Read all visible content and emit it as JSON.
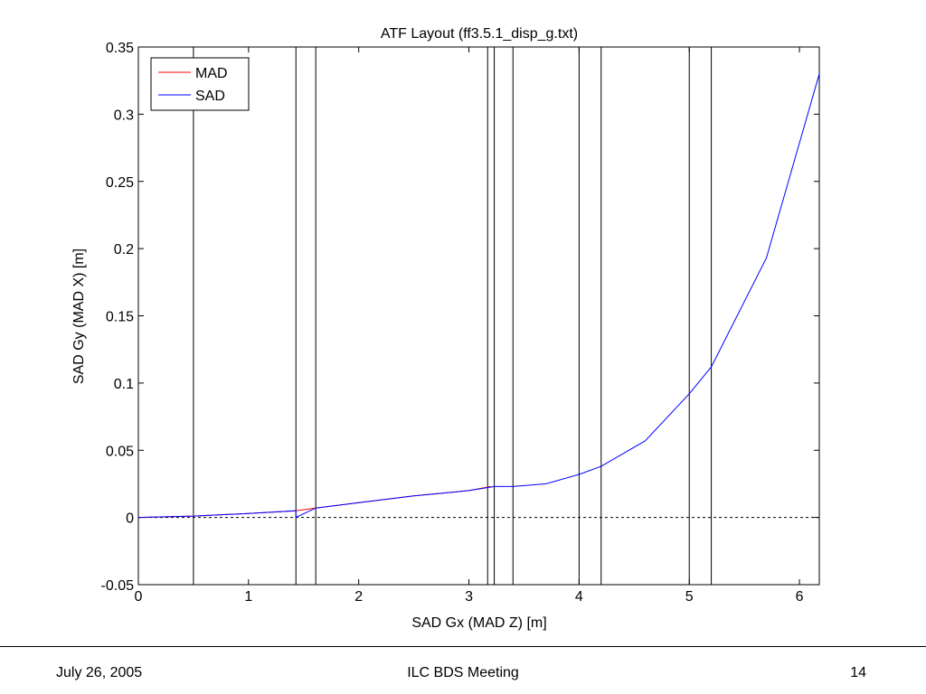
{
  "chart_data": {
    "type": "line",
    "title": "ATF Layout (ff3.5.1_disp_g.txt)",
    "xlabel": "SAD Gx (MAD Z) [m]",
    "ylabel": "SAD Gy (MAD X) [m]",
    "xlim": [
      0,
      6.18
    ],
    "ylim": [
      -0.05,
      0.35
    ],
    "xticks": [
      0,
      1,
      2,
      3,
      4,
      5,
      6
    ],
    "yticks": [
      -0.05,
      0,
      0.05,
      0.1,
      0.15,
      0.2,
      0.25,
      0.3,
      0.35
    ],
    "xtick_labels": [
      "0",
      "1",
      "2",
      "3",
      "4",
      "5",
      "6"
    ],
    "ytick_labels": [
      "-0.05",
      "0",
      "0.05",
      "0.1",
      "0.15",
      "0.2",
      "0.25",
      "0.3",
      "0.35"
    ],
    "grid": false,
    "legend_position": "top-left",
    "zero_line": {
      "y": 0,
      "style": "dashed",
      "color": "#000000"
    },
    "vertical_lines": [
      0.5,
      1.43,
      1.61,
      3.17,
      3.23,
      3.4,
      4.0,
      4.2,
      5.0,
      5.2
    ],
    "series": [
      {
        "name": "MAD",
        "color": "#ff0000",
        "x": [
          0,
          0.5,
          1.0,
          1.43,
          1.61,
          2.0,
          2.5,
          3.0,
          3.2
        ],
        "y": [
          0,
          0.001,
          0.003,
          0.005,
          0.007,
          0.011,
          0.016,
          0.02,
          0.023
        ]
      },
      {
        "name": "SAD",
        "color": "#0000ff",
        "x": [
          0,
          0.5,
          1.0,
          1.43,
          1.43,
          1.61,
          2.0,
          2.5,
          3.0,
          3.23,
          3.4,
          3.7,
          4.0,
          4.2,
          4.6,
          5.0,
          5.2,
          5.7,
          6.18
        ],
        "y": [
          0,
          0.001,
          0.003,
          0.005,
          0.0,
          0.007,
          0.011,
          0.016,
          0.02,
          0.023,
          0.023,
          0.025,
          0.032,
          0.038,
          0.057,
          0.092,
          0.112,
          0.193,
          0.33
        ]
      }
    ]
  },
  "footer": {
    "date": "July 26, 2005",
    "event": "ILC BDS Meeting",
    "page": "14"
  }
}
